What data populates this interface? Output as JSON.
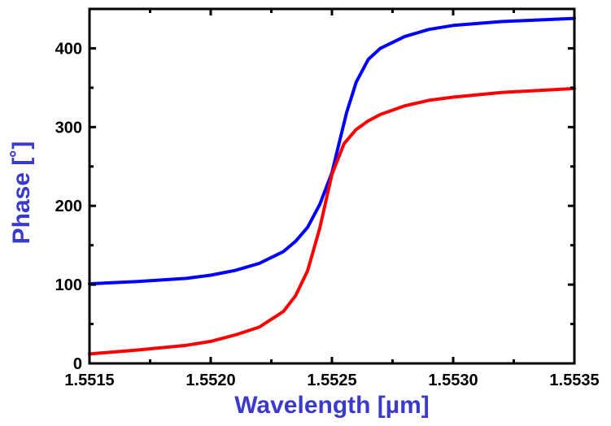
{
  "chart_data": {
    "type": "line",
    "title": "",
    "xlabel": "Wavelength [µm]",
    "ylabel": "Phase [˚]",
    "xlim": [
      1.5515,
      1.5535
    ],
    "ylim": [
      0,
      450
    ],
    "x_ticks": [
      1.5515,
      1.552,
      1.5525,
      1.553,
      1.5535
    ],
    "x_tick_labels": [
      "1.5515",
      "1.5520",
      "1.5525",
      "1.5530",
      "1.5535"
    ],
    "y_ticks": [
      0,
      100,
      200,
      300,
      400
    ],
    "y_tick_labels": [
      "0",
      "100",
      "200",
      "300",
      "400"
    ],
    "grid": false,
    "legend": "none",
    "colors": {
      "axis_title": "#3a3acc",
      "frame": "#000000"
    },
    "series": [
      {
        "color": "#0000ff",
        "x": [
          1.5515,
          1.5517,
          1.5519,
          1.552,
          1.5521,
          1.5522,
          1.5523,
          1.55235,
          1.5524,
          1.55245,
          1.5525,
          1.55253,
          1.55256,
          1.5526,
          1.55265,
          1.5527,
          1.5528,
          1.5529,
          1.553,
          1.5532,
          1.5535
        ],
        "y": [
          101,
          104,
          108,
          112,
          118,
          127,
          142,
          155,
          173,
          202,
          242,
          280,
          318,
          357,
          386,
          400,
          415,
          424,
          429,
          434,
          438
        ]
      },
      {
        "color": "#ff0000",
        "x": [
          1.5515,
          1.5517,
          1.5519,
          1.552,
          1.5521,
          1.5522,
          1.5523,
          1.55235,
          1.5524,
          1.55245,
          1.5525,
          1.55255,
          1.5526,
          1.55265,
          1.5527,
          1.5528,
          1.5529,
          1.553,
          1.5532,
          1.5535
        ],
        "y": [
          12,
          17,
          23,
          28,
          36,
          46,
          66,
          86,
          118,
          172,
          240,
          279,
          297,
          308,
          316,
          327,
          334,
          338,
          344,
          349
        ]
      }
    ]
  }
}
